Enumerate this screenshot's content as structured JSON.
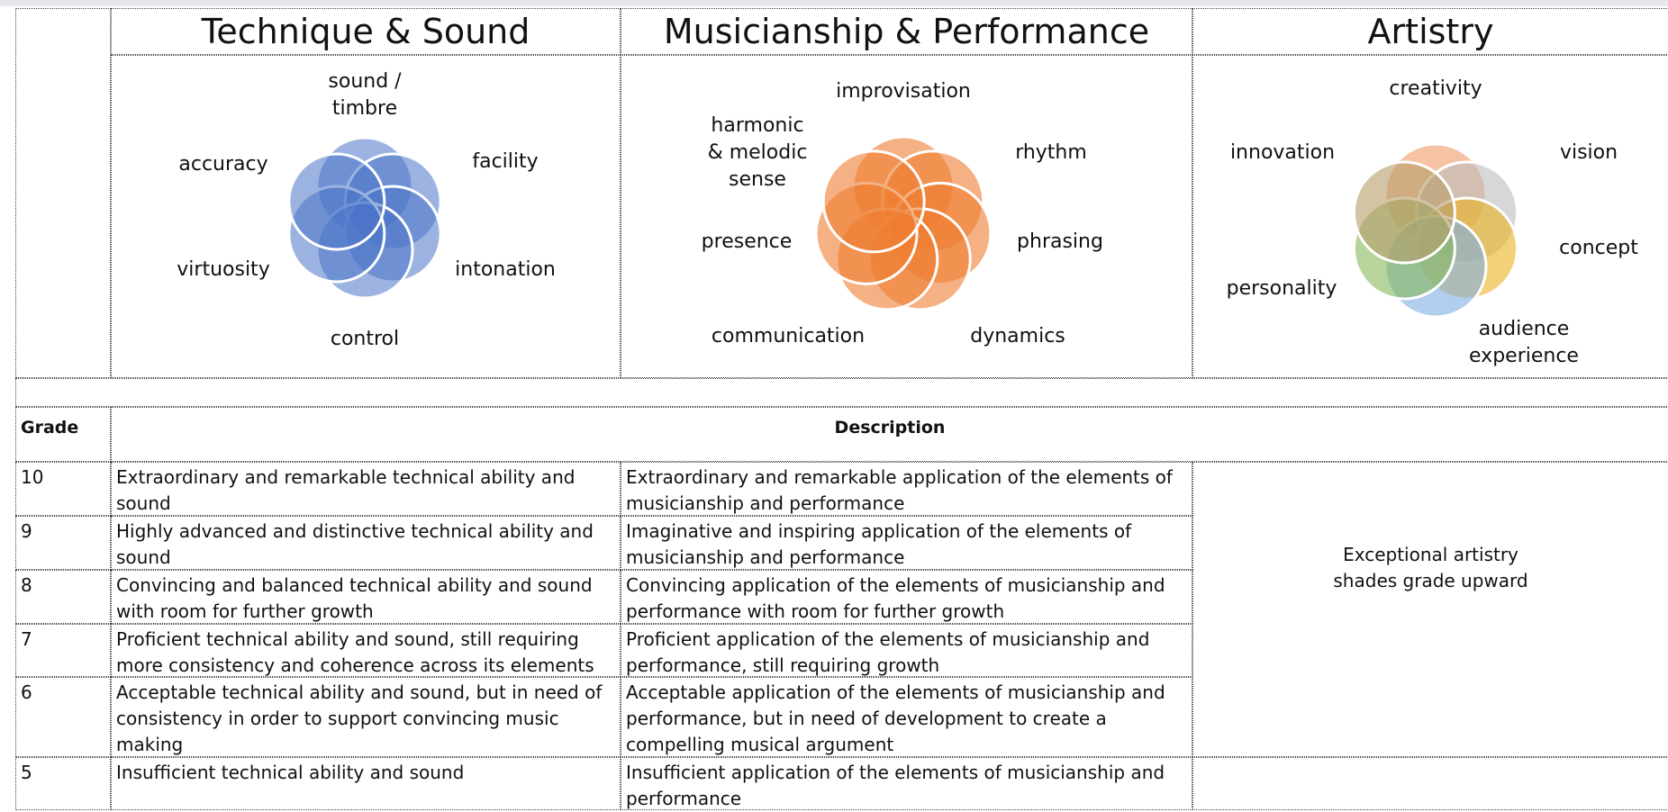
{
  "sections": [
    {
      "title": "Technique & Sound",
      "labels": [
        "sound /\ntimbre",
        "facility",
        "intonation",
        "control",
        "virtuosity",
        "accuracy"
      ]
    },
    {
      "title": "Musicianship & Performance",
      "labels": [
        "improvisation",
        "rhythm",
        "phrasing",
        "dynamics",
        "communication",
        "presence",
        "harmonic\n& melodic\nsense"
      ]
    },
    {
      "title": "Artistry",
      "labels": [
        "creativity",
        "vision",
        "concept",
        "audience\nexperience",
        "personality",
        "innovation"
      ]
    }
  ],
  "table": {
    "header": [
      "Grade",
      "Description"
    ],
    "rows": [
      [
        "10",
        "Extraordinary and remarkable technical ability and sound",
        "Extraordinary and remarkable application of the elements of musicianship and performance"
      ],
      [
        "9",
        "Highly advanced and distinctive technical ability and sound",
        "Imaginative and inspiring application of the elements of musicianship and performance"
      ],
      [
        "8",
        "Convincing and balanced technical ability and sound with room for further growth",
        "Convincing application of the elements of musicianship and performance with room for further growth"
      ],
      [
        "7",
        "Proficient technical ability and sound, still requiring more consistency and coherence across its elements",
        "Proficient application of the elements of musicianship and performance, still requiring growth"
      ],
      [
        "6",
        "Acceptable technical ability and sound, but in need of consistency in order to support convincing music making",
        "Acceptable application of the elements of musicianship and performance, but in need of development to create a compelling musical argument"
      ],
      [
        "5",
        "Insufficient technical ability and sound",
        "Insufficient application of the elements of musicianship and performance"
      ]
    ],
    "note": "Exceptional artistry\nshades grade upward"
  }
}
